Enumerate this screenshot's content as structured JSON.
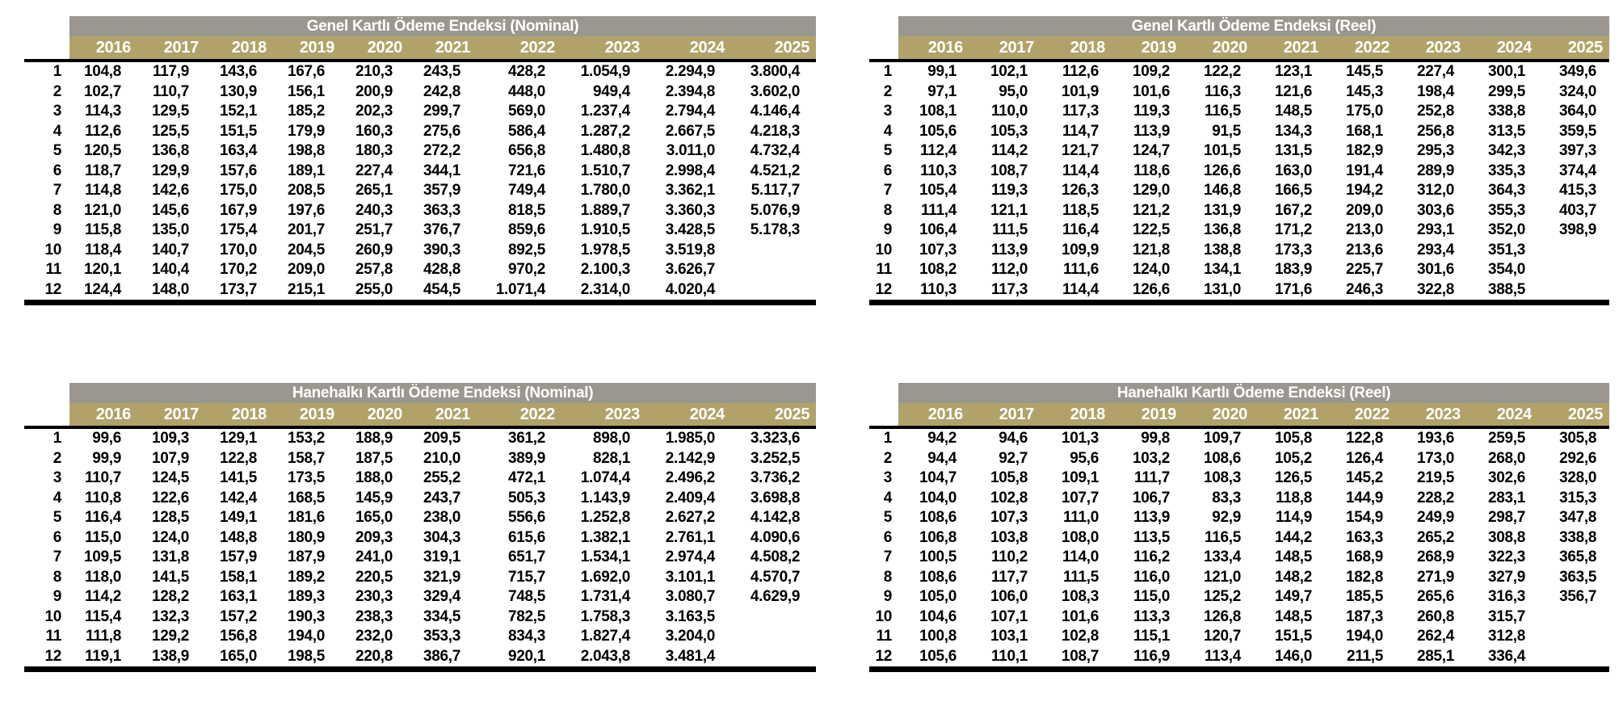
{
  "page": {
    "background": "#FFFFFF"
  },
  "styles": {
    "title_bar_bg": "#9B9790",
    "year_bar_bg": "#B1A26A",
    "header_text_color": "#FFFFFF",
    "data_text_color": "#000000",
    "rule_color": "#000000"
  },
  "tables": [
    {
      "id": "genel-nominal",
      "title": "Genel Kartlı Ödeme Endeksi (Nominal)",
      "years": [
        "2016",
        "2017",
        "2018",
        "2019",
        "2020",
        "2021",
        "2022",
        "2023",
        "2024",
        "2025"
      ],
      "rows": [
        {
          "month": "1",
          "values": [
            "104,8",
            "117,9",
            "143,6",
            "167,6",
            "210,3",
            "243,5",
            "428,2",
            "1.054,9",
            "2.294,9",
            "3.800,4"
          ]
        },
        {
          "month": "2",
          "values": [
            "102,7",
            "110,7",
            "130,9",
            "156,1",
            "200,9",
            "242,8",
            "448,0",
            "949,4",
            "2.394,8",
            "3.602,0"
          ]
        },
        {
          "month": "3",
          "values": [
            "114,3",
            "129,5",
            "152,1",
            "185,2",
            "202,3",
            "299,7",
            "569,0",
            "1.237,4",
            "2.794,4",
            "4.146,4"
          ]
        },
        {
          "month": "4",
          "values": [
            "112,6",
            "125,5",
            "151,5",
            "179,9",
            "160,3",
            "275,6",
            "586,4",
            "1.287,2",
            "2.667,5",
            "4.218,3"
          ]
        },
        {
          "month": "5",
          "values": [
            "120,5",
            "136,8",
            "163,4",
            "198,8",
            "180,3",
            "272,2",
            "656,8",
            "1.480,8",
            "3.011,0",
            "4.732,4"
          ]
        },
        {
          "month": "6",
          "values": [
            "118,7",
            "129,9",
            "157,6",
            "189,1",
            "227,4",
            "344,1",
            "721,6",
            "1.510,7",
            "2.998,4",
            "4.521,2"
          ]
        },
        {
          "month": "7",
          "values": [
            "114,8",
            "142,6",
            "175,0",
            "208,5",
            "265,1",
            "357,9",
            "749,4",
            "1.780,0",
            "3.362,1",
            "5.117,7"
          ]
        },
        {
          "month": "8",
          "values": [
            "121,0",
            "145,6",
            "167,9",
            "197,6",
            "240,3",
            "363,3",
            "818,5",
            "1.889,7",
            "3.360,3",
            "5.076,9"
          ]
        },
        {
          "month": "9",
          "values": [
            "115,8",
            "135,0",
            "175,4",
            "201,7",
            "251,7",
            "376,7",
            "859,6",
            "1.910,5",
            "3.428,5",
            "5.178,3"
          ]
        },
        {
          "month": "10",
          "values": [
            "118,4",
            "140,7",
            "170,0",
            "204,5",
            "260,9",
            "390,3",
            "892,5",
            "1.978,5",
            "3.519,8",
            ""
          ]
        },
        {
          "month": "11",
          "values": [
            "120,1",
            "140,4",
            "170,2",
            "209,0",
            "257,8",
            "428,8",
            "970,2",
            "2.100,3",
            "3.626,7",
            ""
          ]
        },
        {
          "month": "12",
          "values": [
            "124,4",
            "148,0",
            "173,7",
            "215,1",
            "255,0",
            "454,5",
            "1.071,4",
            "2.314,0",
            "4.020,4",
            ""
          ]
        }
      ]
    },
    {
      "id": "genel-reel",
      "title": "Genel Kartlı Ödeme Endeksi (Reel)",
      "years": [
        "2016",
        "2017",
        "2018",
        "2019",
        "2020",
        "2021",
        "2022",
        "2023",
        "2024",
        "2025"
      ],
      "rows": [
        {
          "month": "1",
          "values": [
            "99,1",
            "102,1",
            "112,6",
            "109,2",
            "122,2",
            "123,1",
            "145,5",
            "227,4",
            "300,1",
            "349,6"
          ]
        },
        {
          "month": "2",
          "values": [
            "97,1",
            "95,0",
            "101,9",
            "101,6",
            "116,3",
            "121,6",
            "145,3",
            "198,4",
            "299,5",
            "324,0"
          ]
        },
        {
          "month": "3",
          "values": [
            "108,1",
            "110,0",
            "117,3",
            "119,3",
            "116,5",
            "148,5",
            "175,0",
            "252,8",
            "338,8",
            "364,0"
          ]
        },
        {
          "month": "4",
          "values": [
            "105,6",
            "105,3",
            "114,7",
            "113,9",
            "91,5",
            "134,3",
            "168,1",
            "256,8",
            "313,5",
            "359,5"
          ]
        },
        {
          "month": "5",
          "values": [
            "112,4",
            "114,2",
            "121,7",
            "124,7",
            "101,5",
            "131,5",
            "182,9",
            "295,3",
            "342,3",
            "397,3"
          ]
        },
        {
          "month": "6",
          "values": [
            "110,3",
            "108,7",
            "114,4",
            "118,6",
            "126,6",
            "163,0",
            "191,4",
            "289,9",
            "335,3",
            "374,4"
          ]
        },
        {
          "month": "7",
          "values": [
            "105,4",
            "119,3",
            "126,3",
            "129,0",
            "146,8",
            "166,5",
            "194,2",
            "312,0",
            "364,3",
            "415,3"
          ]
        },
        {
          "month": "8",
          "values": [
            "111,4",
            "121,1",
            "118,5",
            "121,2",
            "131,9",
            "167,2",
            "209,0",
            "303,6",
            "355,3",
            "403,7"
          ]
        },
        {
          "month": "9",
          "values": [
            "106,4",
            "111,5",
            "116,4",
            "122,5",
            "136,8",
            "171,2",
            "213,0",
            "293,1",
            "352,0",
            "398,9"
          ]
        },
        {
          "month": "10",
          "values": [
            "107,3",
            "113,9",
            "109,9",
            "121,8",
            "138,8",
            "173,3",
            "213,6",
            "293,4",
            "351,3",
            ""
          ]
        },
        {
          "month": "11",
          "values": [
            "108,2",
            "112,0",
            "111,6",
            "124,0",
            "134,1",
            "183,9",
            "225,7",
            "301,6",
            "354,0",
            ""
          ]
        },
        {
          "month": "12",
          "values": [
            "110,3",
            "117,3",
            "114,4",
            "126,6",
            "131,0",
            "171,6",
            "246,3",
            "322,8",
            "388,5",
            ""
          ]
        }
      ]
    },
    {
      "id": "hanehalki-nominal",
      "title": "Hanehalkı Kartlı Ödeme Endeksi (Nominal)",
      "years": [
        "2016",
        "2017",
        "2018",
        "2019",
        "2020",
        "2021",
        "2022",
        "2023",
        "2024",
        "2025"
      ],
      "rows": [
        {
          "month": "1",
          "values": [
            "99,6",
            "109,3",
            "129,1",
            "153,2",
            "188,9",
            "209,5",
            "361,2",
            "898,0",
            "1.985,0",
            "3.323,6"
          ]
        },
        {
          "month": "2",
          "values": [
            "99,9",
            "107,9",
            "122,8",
            "158,7",
            "187,5",
            "210,0",
            "389,9",
            "828,1",
            "2.142,9",
            "3.252,5"
          ]
        },
        {
          "month": "3",
          "values": [
            "110,7",
            "124,5",
            "141,5",
            "173,5",
            "188,0",
            "255,2",
            "472,1",
            "1.074,4",
            "2.496,2",
            "3.736,2"
          ]
        },
        {
          "month": "4",
          "values": [
            "110,8",
            "122,6",
            "142,4",
            "168,5",
            "145,9",
            "243,7",
            "505,3",
            "1.143,9",
            "2.409,4",
            "3.698,8"
          ]
        },
        {
          "month": "5",
          "values": [
            "116,4",
            "128,5",
            "149,1",
            "181,6",
            "165,0",
            "238,0",
            "556,6",
            "1.252,8",
            "2.627,2",
            "4.142,8"
          ]
        },
        {
          "month": "6",
          "values": [
            "115,0",
            "124,0",
            "148,8",
            "180,9",
            "209,3",
            "304,3",
            "615,6",
            "1.382,1",
            "2.761,1",
            "4.090,6"
          ]
        },
        {
          "month": "7",
          "values": [
            "109,5",
            "131,8",
            "157,9",
            "187,9",
            "241,0",
            "319,1",
            "651,7",
            "1.534,1",
            "2.974,4",
            "4.508,2"
          ]
        },
        {
          "month": "8",
          "values": [
            "118,0",
            "141,5",
            "158,1",
            "189,2",
            "220,5",
            "321,9",
            "715,7",
            "1.692,0",
            "3.101,1",
            "4.570,7"
          ]
        },
        {
          "month": "9",
          "values": [
            "114,2",
            "128,2",
            "163,1",
            "189,3",
            "230,3",
            "329,4",
            "748,5",
            "1.731,4",
            "3.080,7",
            "4.629,9"
          ]
        },
        {
          "month": "10",
          "values": [
            "115,4",
            "132,3",
            "157,2",
            "190,3",
            "238,3",
            "334,5",
            "782,5",
            "1.758,3",
            "3.163,5",
            ""
          ]
        },
        {
          "month": "11",
          "values": [
            "111,8",
            "129,2",
            "156,8",
            "194,0",
            "232,0",
            "353,3",
            "834,3",
            "1.827,4",
            "3.204,0",
            ""
          ]
        },
        {
          "month": "12",
          "values": [
            "119,1",
            "138,9",
            "165,0",
            "198,5",
            "220,8",
            "386,7",
            "920,1",
            "2.043,8",
            "3.481,4",
            ""
          ]
        }
      ]
    },
    {
      "id": "hanehalki-reel",
      "title": "Hanehalkı Kartlı Ödeme Endeksi (Reel)",
      "years": [
        "2016",
        "2017",
        "2018",
        "2019",
        "2020",
        "2021",
        "2022",
        "2023",
        "2024",
        "2025"
      ],
      "rows": [
        {
          "month": "1",
          "values": [
            "94,2",
            "94,6",
            "101,3",
            "99,8",
            "109,7",
            "105,8",
            "122,8",
            "193,6",
            "259,5",
            "305,8"
          ]
        },
        {
          "month": "2",
          "values": [
            "94,4",
            "92,7",
            "95,6",
            "103,2",
            "108,6",
            "105,2",
            "126,4",
            "173,0",
            "268,0",
            "292,6"
          ]
        },
        {
          "month": "3",
          "values": [
            "104,7",
            "105,8",
            "109,1",
            "111,7",
            "108,3",
            "126,5",
            "145,2",
            "219,5",
            "302,6",
            "328,0"
          ]
        },
        {
          "month": "4",
          "values": [
            "104,0",
            "102,8",
            "107,7",
            "106,7",
            "83,3",
            "118,8",
            "144,9",
            "228,2",
            "283,1",
            "315,3"
          ]
        },
        {
          "month": "5",
          "values": [
            "108,6",
            "107,3",
            "111,0",
            "113,9",
            "92,9",
            "114,9",
            "154,9",
            "249,9",
            "298,7",
            "347,8"
          ]
        },
        {
          "month": "6",
          "values": [
            "106,8",
            "103,8",
            "108,0",
            "113,5",
            "116,5",
            "144,2",
            "163,3",
            "265,2",
            "308,8",
            "338,8"
          ]
        },
        {
          "month": "7",
          "values": [
            "100,5",
            "110,2",
            "114,0",
            "116,2",
            "133,4",
            "148,5",
            "168,9",
            "268,9",
            "322,3",
            "365,8"
          ]
        },
        {
          "month": "8",
          "values": [
            "108,6",
            "117,7",
            "111,5",
            "116,0",
            "121,0",
            "148,2",
            "182,8",
            "271,9",
            "327,9",
            "363,5"
          ]
        },
        {
          "month": "9",
          "values": [
            "105,0",
            "106,0",
            "108,3",
            "115,0",
            "125,2",
            "149,7",
            "185,5",
            "265,6",
            "316,3",
            "356,7"
          ]
        },
        {
          "month": "10",
          "values": [
            "104,6",
            "107,1",
            "101,6",
            "113,3",
            "126,8",
            "148,5",
            "187,3",
            "260,8",
            "315,7",
            ""
          ]
        },
        {
          "month": "11",
          "values": [
            "100,8",
            "103,1",
            "102,8",
            "115,1",
            "120,7",
            "151,5",
            "194,0",
            "262,4",
            "312,8",
            ""
          ]
        },
        {
          "month": "12",
          "values": [
            "105,6",
            "110,1",
            "108,7",
            "116,9",
            "113,4",
            "146,0",
            "211,5",
            "285,1",
            "336,4",
            ""
          ]
        }
      ]
    }
  ]
}
